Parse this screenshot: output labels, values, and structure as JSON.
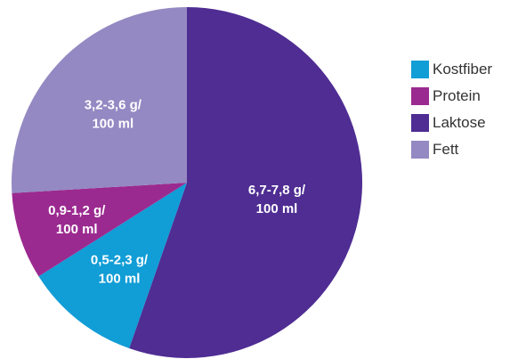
{
  "chart_data": {
    "type": "pie",
    "slices": [
      {
        "name": "Laktose",
        "value": 7.25,
        "color": "#4f2d93",
        "label_line1": "6,7-7,8 g/",
        "label_line2": "100 ml"
      },
      {
        "name": "Kostfiber",
        "value": 1.4,
        "color": "#119dd6",
        "label_line1": "0,5-2,3 g/",
        "label_line2": "100 ml"
      },
      {
        "name": "Protein",
        "value": 1.05,
        "color": "#9b2a90",
        "label_line1": "0,9-1,2 g/",
        "label_line2": "100 ml"
      },
      {
        "name": "Fett",
        "value": 3.4,
        "color": "#9489c2",
        "label_line1": "3,2-3,6 g/",
        "label_line2": "100 ml"
      }
    ],
    "legend": {
      "placement": "right",
      "items": [
        {
          "name": "Kostfiber",
          "color": "#119dd6"
        },
        {
          "name": "Protein",
          "color": "#9b2a90"
        },
        {
          "name": "Laktose",
          "color": "#4f2d93"
        },
        {
          "name": "Fett",
          "color": "#9489c2"
        }
      ]
    }
  }
}
